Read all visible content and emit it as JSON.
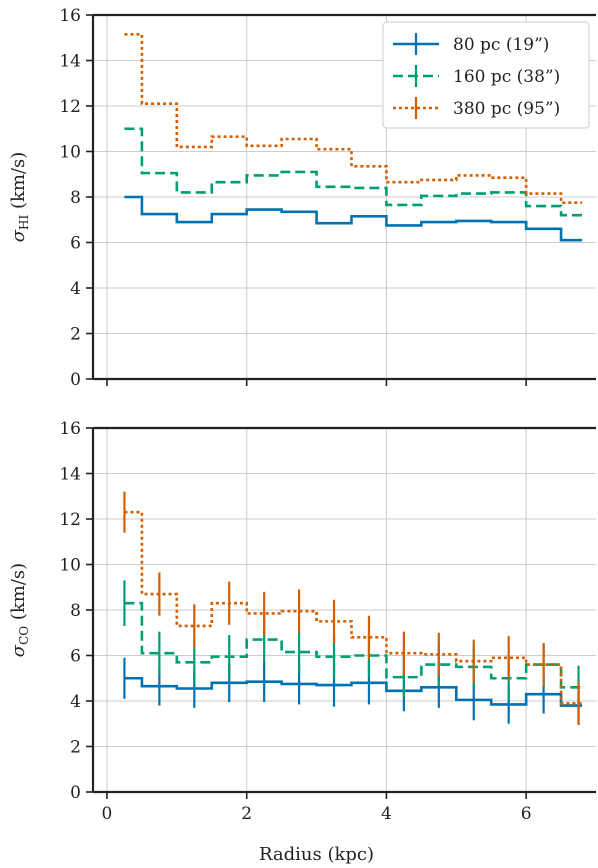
{
  "chart_data": [
    {
      "type": "line",
      "panel": "top",
      "ylabel_main": "σ",
      "ylabel_sub": "HI",
      "ylabel_units": "(km/s)",
      "xlim": [
        -0.2,
        7.0
      ],
      "ylim": [
        0,
        16
      ],
      "xticks": [
        "0",
        "2",
        "4",
        "6"
      ],
      "yticks": [
        "0",
        "2",
        "4",
        "6",
        "8",
        "10",
        "12",
        "14",
        "16"
      ],
      "grid": true,
      "legend_position": "top-right",
      "bin_edges": [
        0.25,
        0.5,
        1.0,
        1.5,
        2.0,
        2.5,
        3.0,
        3.5,
        4.0,
        4.5,
        5.0,
        5.5,
        6.0,
        6.5,
        6.8
      ],
      "series": [
        {
          "name": "80 pc (19”)",
          "color": "#0072b2",
          "style": "solid",
          "values": [
            8.0,
            7.25,
            6.9,
            7.25,
            7.45,
            7.35,
            6.85,
            7.15,
            6.75,
            6.9,
            6.95,
            6.9,
            6.6,
            6.1
          ]
        },
        {
          "name": "160 pc (38”)",
          "color": "#009e73",
          "style": "dashed",
          "values": [
            11.0,
            9.05,
            8.2,
            8.65,
            8.95,
            9.1,
            8.45,
            8.4,
            7.65,
            8.05,
            8.15,
            8.2,
            7.6,
            7.2
          ]
        },
        {
          "name": "380 pc (95”)",
          "color": "#d55e00",
          "style": "dotted",
          "values": [
            15.15,
            12.1,
            10.2,
            10.65,
            10.25,
            10.55,
            10.1,
            9.35,
            8.65,
            8.75,
            8.95,
            8.85,
            8.15,
            7.75
          ]
        }
      ]
    },
    {
      "type": "line",
      "panel": "bottom",
      "ylabel_main": "σ",
      "ylabel_sub": "CO",
      "ylabel_units": "(km/s)",
      "xlabel": "Radius (kpc)",
      "xlim": [
        -0.2,
        7.0
      ],
      "ylim": [
        0,
        16
      ],
      "xticks": [
        "0",
        "2",
        "4",
        "6"
      ],
      "yticks": [
        "0",
        "2",
        "4",
        "6",
        "8",
        "10",
        "12",
        "14",
        "16"
      ],
      "grid": true,
      "bin_edges": [
        0.25,
        0.5,
        1.0,
        1.5,
        2.0,
        2.5,
        3.0,
        3.5,
        4.0,
        4.5,
        5.0,
        5.5,
        6.0,
        6.5,
        6.8
      ],
      "series": [
        {
          "name": "80 pc (19”)",
          "color": "#0072b2",
          "style": "solid",
          "values": [
            5.0,
            4.65,
            4.55,
            4.8,
            4.85,
            4.75,
            4.7,
            4.8,
            4.45,
            4.6,
            4.05,
            3.85,
            4.3,
            3.8
          ],
          "errors": [
            0.9,
            0.85,
            0.85,
            0.85,
            0.9,
            0.9,
            0.95,
            0.95,
            0.9,
            0.9,
            0.9,
            0.85,
            0.85,
            0.85
          ]
        },
        {
          "name": "160 pc (38”)",
          "color": "#009e73",
          "style": "dashed",
          "values": [
            8.3,
            6.1,
            5.7,
            5.95,
            6.7,
            6.15,
            5.95,
            6.0,
            5.05,
            5.6,
            5.5,
            5.0,
            5.6,
            4.6
          ],
          "errors": [
            1.0,
            0.95,
            0.95,
            0.95,
            0.95,
            0.95,
            0.95,
            0.95,
            0.95,
            0.95,
            0.95,
            0.95,
            0.95,
            0.95
          ]
        },
        {
          "name": "380 pc (95”)",
          "color": "#d55e00",
          "style": "dotted",
          "values": [
            12.3,
            8.7,
            7.3,
            8.3,
            7.85,
            7.95,
            7.5,
            6.8,
            6.1,
            6.05,
            5.75,
            5.9,
            5.6,
            3.9
          ],
          "errors": [
            0.9,
            0.95,
            0.95,
            0.95,
            0.95,
            0.95,
            0.95,
            0.95,
            0.95,
            0.95,
            0.95,
            0.95,
            0.95,
            0.95
          ]
        }
      ]
    }
  ]
}
